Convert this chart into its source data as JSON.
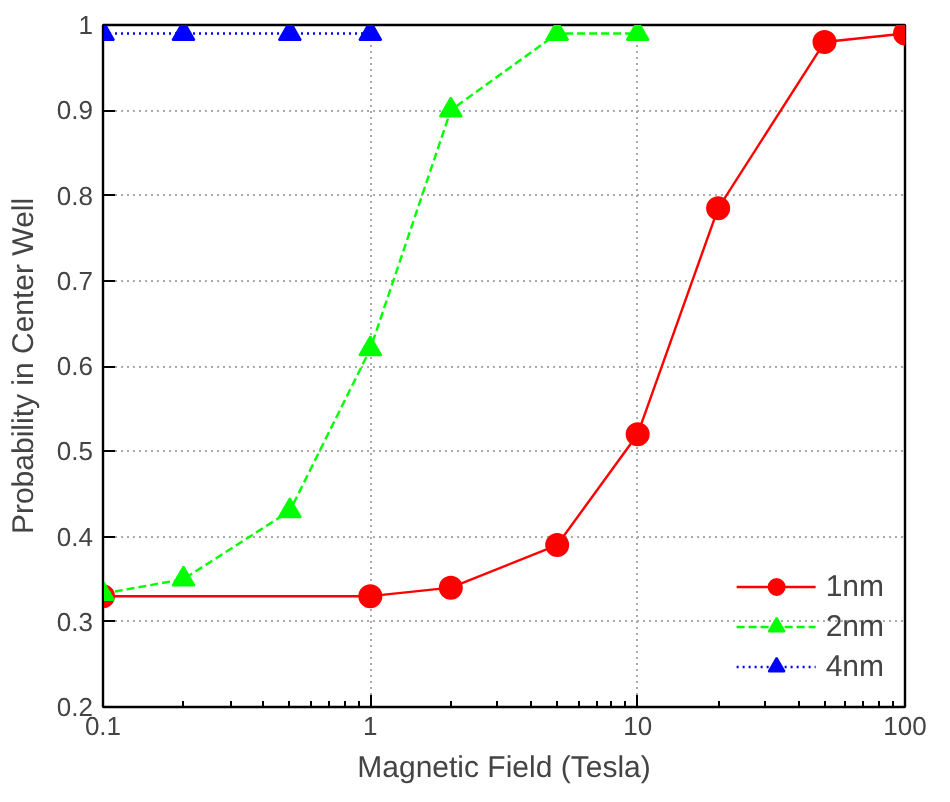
{
  "chart_data": {
    "type": "line",
    "xlabel": "Magnetic Field (Tesla)",
    "ylabel": "Probability in Center Well",
    "log": "x",
    "xlim": [
      0.1,
      100
    ],
    "xticks": [
      0.1,
      1,
      10,
      100
    ],
    "ylim": [
      0.2,
      1
    ],
    "yticks": [
      0.2,
      0.3,
      0.4,
      0.5,
      0.6,
      0.7,
      0.8,
      0.9,
      1
    ],
    "grid": true,
    "legend": "bottom right",
    "series": [
      {
        "name": "1nm",
        "color": "#ff0000",
        "marker": "circle",
        "line_style": "solid",
        "x": [
          0.1,
          1,
          2,
          5,
          10,
          20,
          50,
          100
        ],
        "values": [
          0.33,
          0.33,
          0.34,
          0.39,
          0.52,
          0.785,
          0.98,
          0.99
        ]
      },
      {
        "name": "2nm",
        "color": "#00ff00",
        "marker": "triangle",
        "line_style": "dashed",
        "x": [
          0.1,
          0.2,
          0.5,
          1,
          2,
          5,
          10
        ],
        "values": [
          0.333,
          0.35,
          0.43,
          0.62,
          0.9,
          0.99,
          0.99
        ]
      },
      {
        "name": "4nm",
        "color": "#0000ff",
        "marker": "triangle",
        "line_style": "dotted",
        "x": [
          0.1,
          0.2,
          0.5,
          1
        ],
        "values": [
          0.99,
          0.99,
          0.99,
          0.99
        ]
      }
    ]
  }
}
